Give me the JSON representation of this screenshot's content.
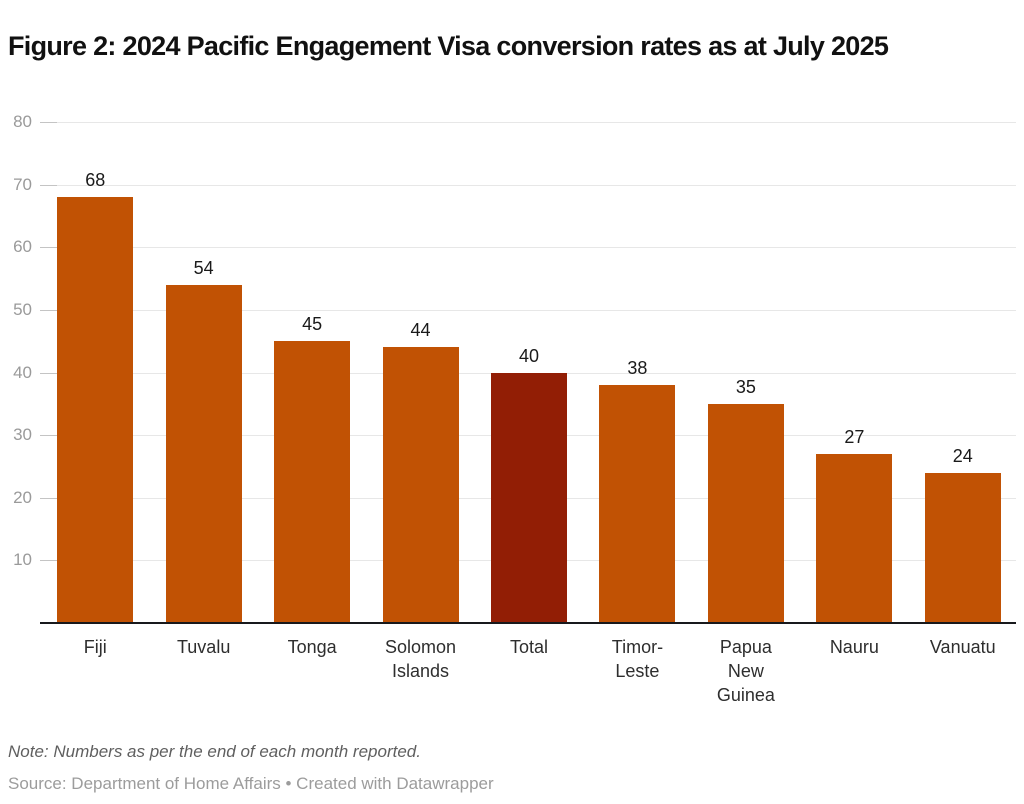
{
  "header": {
    "title": "Figure 2: 2024 Pacific Engagement Visa conversion rates as at July 2025"
  },
  "chart_data": {
    "type": "bar",
    "title": "Figure 2: 2024 Pacific Engagement Visa conversion rates as at July 2025",
    "categories": [
      "Fiji",
      "Tuvalu",
      "Tonga",
      "Solomon Islands",
      "Total",
      "Timor-Leste",
      "Papua New Guinea",
      "Nauru",
      "Vanuatu"
    ],
    "category_label_lines": [
      [
        "Fiji"
      ],
      [
        "Tuvalu"
      ],
      [
        "Tonga"
      ],
      [
        "Solomon",
        "Islands"
      ],
      [
        "Total"
      ],
      [
        "Timor-",
        "Leste"
      ],
      [
        "Papua",
        "New",
        "Guinea"
      ],
      [
        "Nauru"
      ],
      [
        "Vanuatu"
      ]
    ],
    "values": [
      68,
      54,
      45,
      44,
      40,
      38,
      35,
      27,
      24
    ],
    "value_labels_shown": true,
    "xlabel": "",
    "ylabel": "",
    "ylim": [
      0,
      80
    ],
    "yticks": [
      10,
      20,
      30,
      40,
      50,
      60,
      70,
      80
    ],
    "grid": "horizontal",
    "legend": "none",
    "bar_color": "#c15204",
    "highlight": {
      "index": 4,
      "category": "Total",
      "color": "#921e05"
    }
  },
  "colors": {
    "bar": "#c15204",
    "highlight_bar": "#921e05",
    "gridline": "#e7e7e7",
    "axis_line": "#18191c",
    "y_tick_label": "#9a9a9a",
    "value_label": "#1a1a1a",
    "category_label": "#2e2e2e"
  },
  "footer": {
    "note": "Note: Numbers as per the end of each month reported.",
    "source": "Source: Department of Home Affairs",
    "separator": " • ",
    "attribution": "Created with Datawrapper"
  }
}
